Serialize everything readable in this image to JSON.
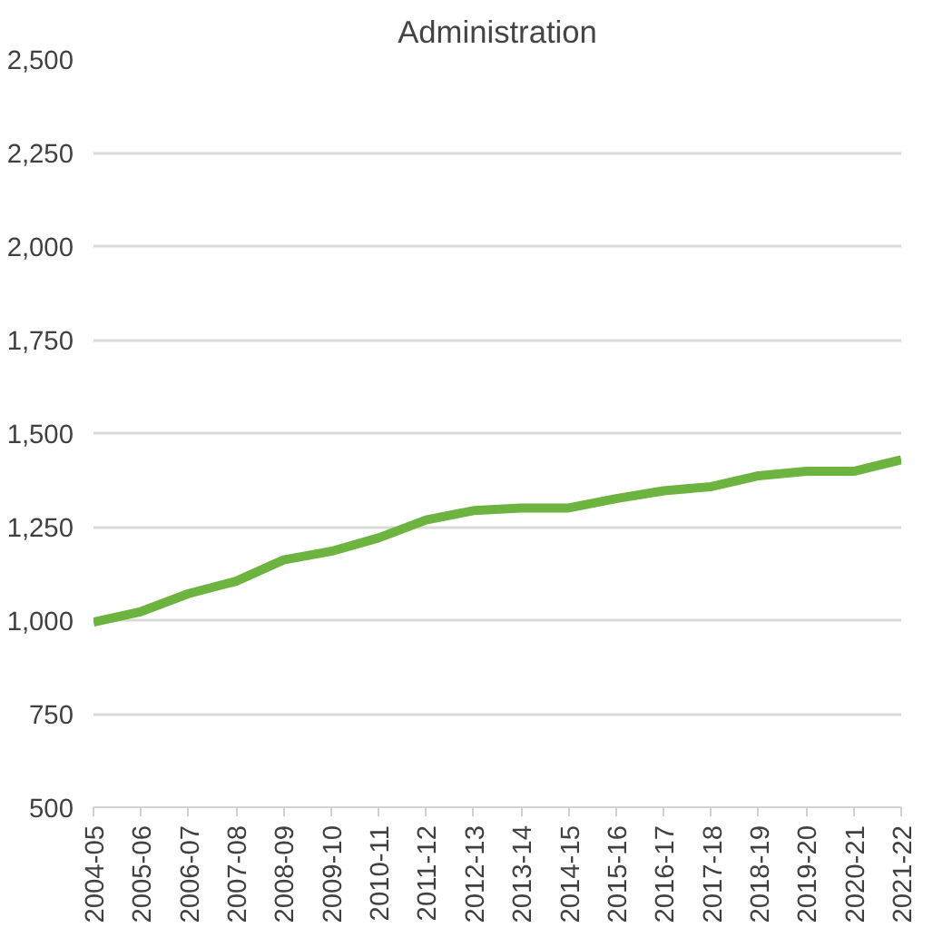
{
  "chart_data": {
    "type": "line",
    "title": "Administration",
    "categories": [
      "2004-05",
      "2005-06",
      "2006-07",
      "2007-08",
      "2008-09",
      "2009-10",
      "2010-11",
      "2011-12",
      "2012-13",
      "2013-14",
      "2014-15",
      "2015-16",
      "2016-17",
      "2017-18",
      "2018-19",
      "2019-20",
      "2020-21",
      "2021-22"
    ],
    "series": [
      {
        "color": "#6db33f",
        "values": [
          995,
          1023,
          1071,
          1104,
          1161,
          1184,
          1220,
          1268,
          1293,
          1300,
          1300,
          1325,
          1346,
          1357,
          1386,
          1398,
          1398,
          1429
        ]
      }
    ],
    "ylim": [
      500,
      2500
    ],
    "yticks": [
      {
        "value": 500,
        "label": "500"
      },
      {
        "value": 750,
        "label": "750"
      },
      {
        "value": 1000,
        "label": "1,000"
      },
      {
        "value": 1250,
        "label": "1,250"
      },
      {
        "value": 1500,
        "label": "1,500"
      },
      {
        "value": 1750,
        "label": "1,750"
      },
      {
        "value": 2000,
        "label": "2,000"
      },
      {
        "value": 2250,
        "label": "2,250"
      },
      {
        "value": 2500,
        "label": "2,500"
      }
    ],
    "grid": "y",
    "marker": "none",
    "line_style": "solid"
  }
}
